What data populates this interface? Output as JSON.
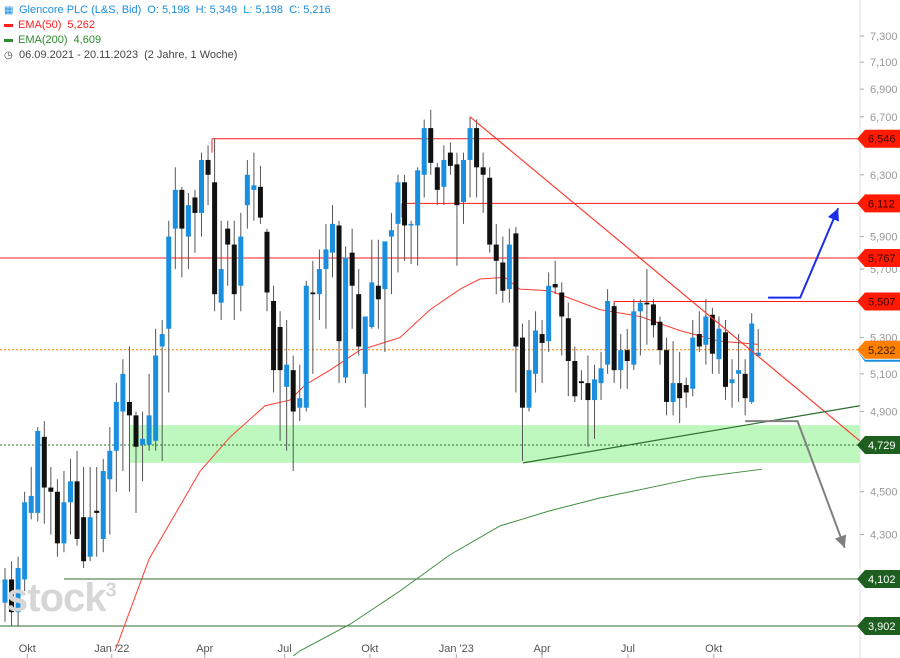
{
  "legend": {
    "title": "Glencore PLC (L&S, Bid)",
    "ohlc": "O: 5,198  H: 5,349  L: 5,198  C: 5,216",
    "ema50_label": "EMA(50)",
    "ema50_value": "5,262",
    "ema200_label": "EMA(200)",
    "ema200_value": "4,609",
    "range": "06.09.2021 - 20.11.2023",
    "range_note": "(2 Jahre, 1 Woche)",
    "icon": "candlestick-icon",
    "clock_icon": "clock-icon"
  },
  "watermark": {
    "text": "stock",
    "sup": "3"
  },
  "colors": {
    "up": "#1a8fe0",
    "down": "#111111",
    "ema50": "#ff3b30",
    "ema200": "#3f8f3f",
    "resistance": "#ff1a1a",
    "support": "#2e6e2e",
    "current": "#ff7f00",
    "zone": "#b8f7b8",
    "bull_arrow": "#1a2ee8",
    "bear_arrow": "#808080"
  },
  "chart_data": {
    "type": "candlestick",
    "title": "Glencore PLC (L&S, Bid)",
    "interval": "weekly",
    "scale": "log",
    "ylim": [
      3.88,
      7.45
    ],
    "y_ticks": [
      "7,300",
      "7,100",
      "6,900",
      "6,700",
      "6,300",
      "5,900",
      "5,700",
      "5,300",
      "5,100",
      "4,900",
      "4,500",
      "4,300"
    ],
    "y_tick_values": [
      7.3,
      7.1,
      6.9,
      6.7,
      6.3,
      5.9,
      5.7,
      5.3,
      5.1,
      4.9,
      4.5,
      4.3
    ],
    "x_labels": [
      {
        "label": "Okt",
        "index": 3.4
      },
      {
        "label": "Jan '22",
        "index": 16.3
      },
      {
        "label": "Apr",
        "index": 30.5
      },
      {
        "label": "Jul",
        "index": 42.7
      },
      {
        "label": "Okt",
        "index": 55.7
      },
      {
        "label": "Jan '23",
        "index": 68.9
      },
      {
        "label": "Apr",
        "index": 82
      },
      {
        "label": "Jul",
        "index": 95.1
      },
      {
        "label": "Okt",
        "index": 108.2
      }
    ],
    "candles_ohlc": [
      [
        4.0,
        4.15,
        3.92,
        4.1
      ],
      [
        4.1,
        4.18,
        3.9,
        3.96
      ],
      [
        3.96,
        4.2,
        3.9,
        4.15
      ],
      [
        4.1,
        4.5,
        4.05,
        4.45
      ],
      [
        4.4,
        4.62,
        4.37,
        4.48
      ],
      [
        4.4,
        4.82,
        4.36,
        4.8
      ],
      [
        4.77,
        4.85,
        4.35,
        4.52
      ],
      [
        4.52,
        4.62,
        4.3,
        4.5
      ],
      [
        4.5,
        4.56,
        4.2,
        4.26
      ],
      [
        4.26,
        4.6,
        4.22,
        4.45
      ],
      [
        4.45,
        4.66,
        4.3,
        4.55
      ],
      [
        4.55,
        4.7,
        4.25,
        4.28
      ],
      [
        4.38,
        4.62,
        4.15,
        4.18
      ],
      [
        4.2,
        4.62,
        4.18,
        4.38
      ],
      [
        4.41,
        4.62,
        4.2,
        4.4
      ],
      [
        4.28,
        4.66,
        4.22,
        4.6
      ],
      [
        4.56,
        4.82,
        4.3,
        4.7
      ],
      [
        4.7,
        5.05,
        4.5,
        4.95
      ],
      [
        4.9,
        5.18,
        4.6,
        5.1
      ],
      [
        4.95,
        5.25,
        4.5,
        4.88
      ],
      [
        4.88,
        4.9,
        4.4,
        4.72
      ],
      [
        4.73,
        4.9,
        4.55,
        4.76
      ],
      [
        4.73,
        5.1,
        4.7,
        4.88
      ],
      [
        4.75,
        5.35,
        4.7,
        5.2
      ],
      [
        5.25,
        5.4,
        4.65,
        5.32
      ],
      [
        5.35,
        6.0,
        5.0,
        5.9
      ],
      [
        5.95,
        6.35,
        5.7,
        6.2
      ],
      [
        6.2,
        6.22,
        5.65,
        5.95
      ],
      [
        5.9,
        6.18,
        5.7,
        6.1
      ],
      [
        6.15,
        6.2,
        5.8,
        6.05
      ],
      [
        6.05,
        6.45,
        5.9,
        6.4
      ],
      [
        6.4,
        6.5,
        6.1,
        6.3
      ],
      [
        6.25,
        6.55,
        5.45,
        5.55
      ],
      [
        5.5,
        6.0,
        5.4,
        5.7
      ],
      [
        5.95,
        6.0,
        5.6,
        5.85
      ],
      [
        5.85,
        6.0,
        5.4,
        5.55
      ],
      [
        5.6,
        6.05,
        5.45,
        5.9
      ],
      [
        6.1,
        6.4,
        5.95,
        6.3
      ],
      [
        6.2,
        6.45,
        6.0,
        6.23
      ],
      [
        6.22,
        6.36,
        5.98,
        6.02
      ],
      [
        5.93,
        5.95,
        5.45,
        5.56
      ],
      [
        5.51,
        5.6,
        5.0,
        5.12
      ],
      [
        5.36,
        5.45,
        4.75,
        5.12
      ],
      [
        5.03,
        5.4,
        4.7,
        5.15
      ],
      [
        5.12,
        5.2,
        4.6,
        4.9
      ],
      [
        4.92,
        5.15,
        4.85,
        4.97
      ],
      [
        4.92,
        5.63,
        4.9,
        5.6
      ],
      [
        5.56,
        5.75,
        5.1,
        5.55
      ],
      [
        5.55,
        5.82,
        5.4,
        5.7
      ],
      [
        5.7,
        5.98,
        5.35,
        5.82
      ],
      [
        5.8,
        6.1,
        5.65,
        5.98
      ],
      [
        5.97,
        6.0,
        5.05,
        5.28
      ],
      [
        5.08,
        5.84,
        5.05,
        5.77
      ],
      [
        5.8,
        5.95,
        5.35,
        5.6
      ],
      [
        5.55,
        5.7,
        5.2,
        5.25
      ],
      [
        5.1,
        5.42,
        4.92,
        5.42
      ],
      [
        5.36,
        5.88,
        5.35,
        5.62
      ],
      [
        5.6,
        5.88,
        5.35,
        5.52
      ],
      [
        5.58,
        5.8,
        5.22,
        5.87
      ],
      [
        5.9,
        6.05,
        5.55,
        5.94
      ],
      [
        5.98,
        6.3,
        5.68,
        6.25
      ],
      [
        6.25,
        6.3,
        5.75,
        5.97
      ],
      [
        5.97,
        6.0,
        5.73,
        5.98
      ],
      [
        5.97,
        6.35,
        5.72,
        6.33
      ],
      [
        6.3,
        6.68,
        6.15,
        6.62
      ],
      [
        6.62,
        6.75,
        6.3,
        6.38
      ],
      [
        6.35,
        6.38,
        6.1,
        6.2
      ],
      [
        6.22,
        6.5,
        6.1,
        6.4
      ],
      [
        6.45,
        6.52,
        6.3,
        6.36
      ],
      [
        6.37,
        6.45,
        5.72,
        6.1
      ],
      [
        6.12,
        6.45,
        5.98,
        6.4
      ],
      [
        6.4,
        6.7,
        6.15,
        6.62
      ],
      [
        6.62,
        6.68,
        6.15,
        6.35
      ],
      [
        6.35,
        6.45,
        6.05,
        6.3
      ],
      [
        6.28,
        6.35,
        5.8,
        5.85
      ],
      [
        5.85,
        5.98,
        5.55,
        5.75
      ],
      [
        5.74,
        5.9,
        5.5,
        5.57
      ],
      [
        5.58,
        5.95,
        5.5,
        5.85
      ],
      [
        5.92,
        5.96,
        5.0,
        5.25
      ],
      [
        5.3,
        5.38,
        4.65,
        4.92
      ],
      [
        4.92,
        5.4,
        4.9,
        5.12
      ],
      [
        5.1,
        5.45,
        5.0,
        5.34
      ],
      [
        5.32,
        5.4,
        5.05,
        5.27
      ],
      [
        5.28,
        5.68,
        5.22,
        5.6
      ],
      [
        5.61,
        5.75,
        5.55,
        5.59
      ],
      [
        5.56,
        5.62,
        5.2,
        5.42
      ],
      [
        5.41,
        5.5,
        4.98,
        5.17
      ],
      [
        5.17,
        5.25,
        4.95,
        4.98
      ],
      [
        5.06,
        5.12,
        4.96,
        5.05
      ],
      [
        5.05,
        5.2,
        4.72,
        4.96
      ],
      [
        4.96,
        5.15,
        4.76,
        5.07
      ],
      [
        5.05,
        5.22,
        4.96,
        5.13
      ],
      [
        5.15,
        5.58,
        5.1,
        5.51
      ],
      [
        5.48,
        5.5,
        5.05,
        5.12
      ],
      [
        5.12,
        5.32,
        5.02,
        5.23
      ],
      [
        5.23,
        5.35,
        5.02,
        5.17
      ],
      [
        5.15,
        5.52,
        5.12,
        5.45
      ],
      [
        5.45,
        5.52,
        5.2,
        5.5
      ],
      [
        5.5,
        5.7,
        5.26,
        5.49
      ],
      [
        5.49,
        5.52,
        5.3,
        5.37
      ],
      [
        5.39,
        5.42,
        5.15,
        5.23
      ],
      [
        5.23,
        5.3,
        4.88,
        4.95
      ],
      [
        4.95,
        5.28,
        4.88,
        5.05
      ],
      [
        5.05,
        5.22,
        4.84,
        4.97
      ],
      [
        5.04,
        5.08,
        4.92,
        5.0
      ],
      [
        5.02,
        5.4,
        4.98,
        5.3
      ],
      [
        5.32,
        5.45,
        5.22,
        5.25
      ],
      [
        5.26,
        5.52,
        5.15,
        5.42
      ],
      [
        5.43,
        5.47,
        5.1,
        5.21
      ],
      [
        5.18,
        5.42,
        5.1,
        5.35
      ],
      [
        5.33,
        5.4,
        4.96,
        5.03
      ],
      [
        5.05,
        5.18,
        4.92,
        5.07
      ],
      [
        5.1,
        5.32,
        4.95,
        5.12
      ],
      [
        5.1,
        5.18,
        4.88,
        4.97
      ],
      [
        4.95,
        5.44,
        4.94,
        5.38
      ],
      [
        5.198,
        5.349,
        5.198,
        5.216
      ]
    ],
    "ema50_points": [
      [
        16.8,
        3.8
      ],
      [
        22,
        4.19
      ],
      [
        29.8,
        4.6
      ],
      [
        34.4,
        4.77
      ],
      [
        39.7,
        4.93
      ],
      [
        43.5,
        4.96
      ],
      [
        45.8,
        5.04
      ],
      [
        49.6,
        5.12
      ],
      [
        54.2,
        5.23
      ],
      [
        60.3,
        5.3
      ],
      [
        64.9,
        5.46
      ],
      [
        69.5,
        5.58
      ],
      [
        72.5,
        5.64
      ],
      [
        76.3,
        5.65
      ],
      [
        78.6,
        5.58
      ],
      [
        83.2,
        5.57
      ],
      [
        90.8,
        5.46
      ],
      [
        97,
        5.42
      ],
      [
        103,
        5.34
      ],
      [
        109,
        5.28
      ],
      [
        115,
        5.262
      ]
    ],
    "ema200_points": [
      [
        44,
        3.78
      ],
      [
        45,
        3.8
      ],
      [
        52.7,
        3.91
      ],
      [
        60.3,
        4.05
      ],
      [
        68,
        4.21
      ],
      [
        75.6,
        4.34
      ],
      [
        83.2,
        4.41
      ],
      [
        90.8,
        4.47
      ],
      [
        98.5,
        4.52
      ],
      [
        106,
        4.57
      ],
      [
        115.6,
        4.609
      ]
    ],
    "levels": [
      {
        "label": "6,546",
        "value": 6.546,
        "kind": "resistance",
        "from_index": 31.6
      },
      {
        "label": "6,112",
        "value": 6.112,
        "kind": "resistance",
        "from_index": 60.6
      },
      {
        "label": "5,767",
        "value": 5.767,
        "kind": "resistance",
        "from_index": -1
      },
      {
        "label": "5,507",
        "value": 5.507,
        "kind": "resistance",
        "from_index": 93
      },
      {
        "label": "5,232",
        "value": 5.232,
        "kind": "current",
        "from_index": -1
      },
      {
        "label": "4,729",
        "value": 4.729,
        "kind": "zone-mid",
        "from_index": -1
      },
      {
        "label": "4,102",
        "value": 4.102,
        "kind": "support",
        "from_index": 9
      },
      {
        "label": "3,902",
        "value": 3.902,
        "kind": "support",
        "from_index": -1
      }
    ],
    "support_zone": {
      "low": 4.64,
      "high": 4.83,
      "from_index": 19.5
    },
    "trendlines": [
      {
        "name": "falling-resistance-trendline",
        "kind": "ema50",
        "points": [
          [
            71,
            6.7
          ],
          [
            130.5,
            4.75
          ]
        ]
      },
      {
        "name": "rising-support-trendline",
        "kind": "support",
        "points": [
          [
            79.1,
            4.64
          ],
          [
            130.5,
            4.93
          ]
        ]
      }
    ],
    "arrows": [
      {
        "name": "bullish-scenario-arrow",
        "kind": "bull_arrow",
        "points": [
          [
            116.5,
            5.53
          ],
          [
            121.4,
            5.53
          ],
          [
            127.2,
            6.08
          ]
        ]
      },
      {
        "name": "bearish-scenario-arrow",
        "kind": "bear_arrow",
        "points": [
          [
            113,
            4.85
          ],
          [
            121,
            4.85
          ],
          [
            128.2,
            4.24
          ]
        ]
      }
    ]
  }
}
